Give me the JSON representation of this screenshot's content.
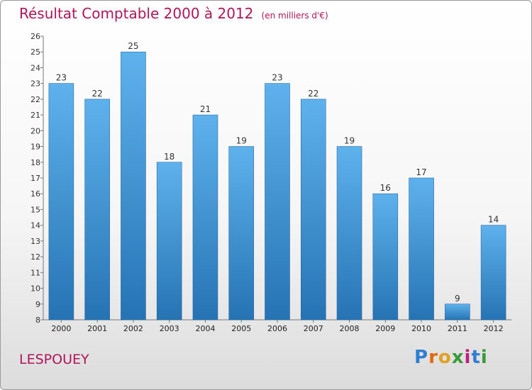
{
  "header": {
    "title": "Résultat Comptable 2000 à 2012",
    "subtitle": "(en milliers d'€)"
  },
  "footer": {
    "city": "LESPOUEY",
    "logo": "Proxiti"
  },
  "colors": {
    "title": "#b0155a",
    "bar_top": "#5eb2ec",
    "bar_bottom": "#2673b4"
  },
  "chart_data": {
    "type": "bar",
    "title": "Résultat Comptable 2000 à 2012",
    "subtitle": "(en milliers d'€)",
    "xlabel": "",
    "ylabel": "",
    "categories": [
      "2000",
      "2001",
      "2002",
      "2003",
      "2004",
      "2005",
      "2006",
      "2007",
      "2008",
      "2009",
      "2010",
      "2011",
      "2012"
    ],
    "values": [
      23,
      22,
      25,
      18,
      21,
      19,
      23,
      22,
      19,
      16,
      17,
      9,
      14
    ],
    "ylim": [
      8,
      26
    ],
    "yticks": [
      8,
      9,
      10,
      11,
      12,
      13,
      14,
      15,
      16,
      17,
      18,
      19,
      20,
      21,
      22,
      23,
      24,
      25,
      26
    ],
    "grid": false,
    "data_labels": true
  }
}
